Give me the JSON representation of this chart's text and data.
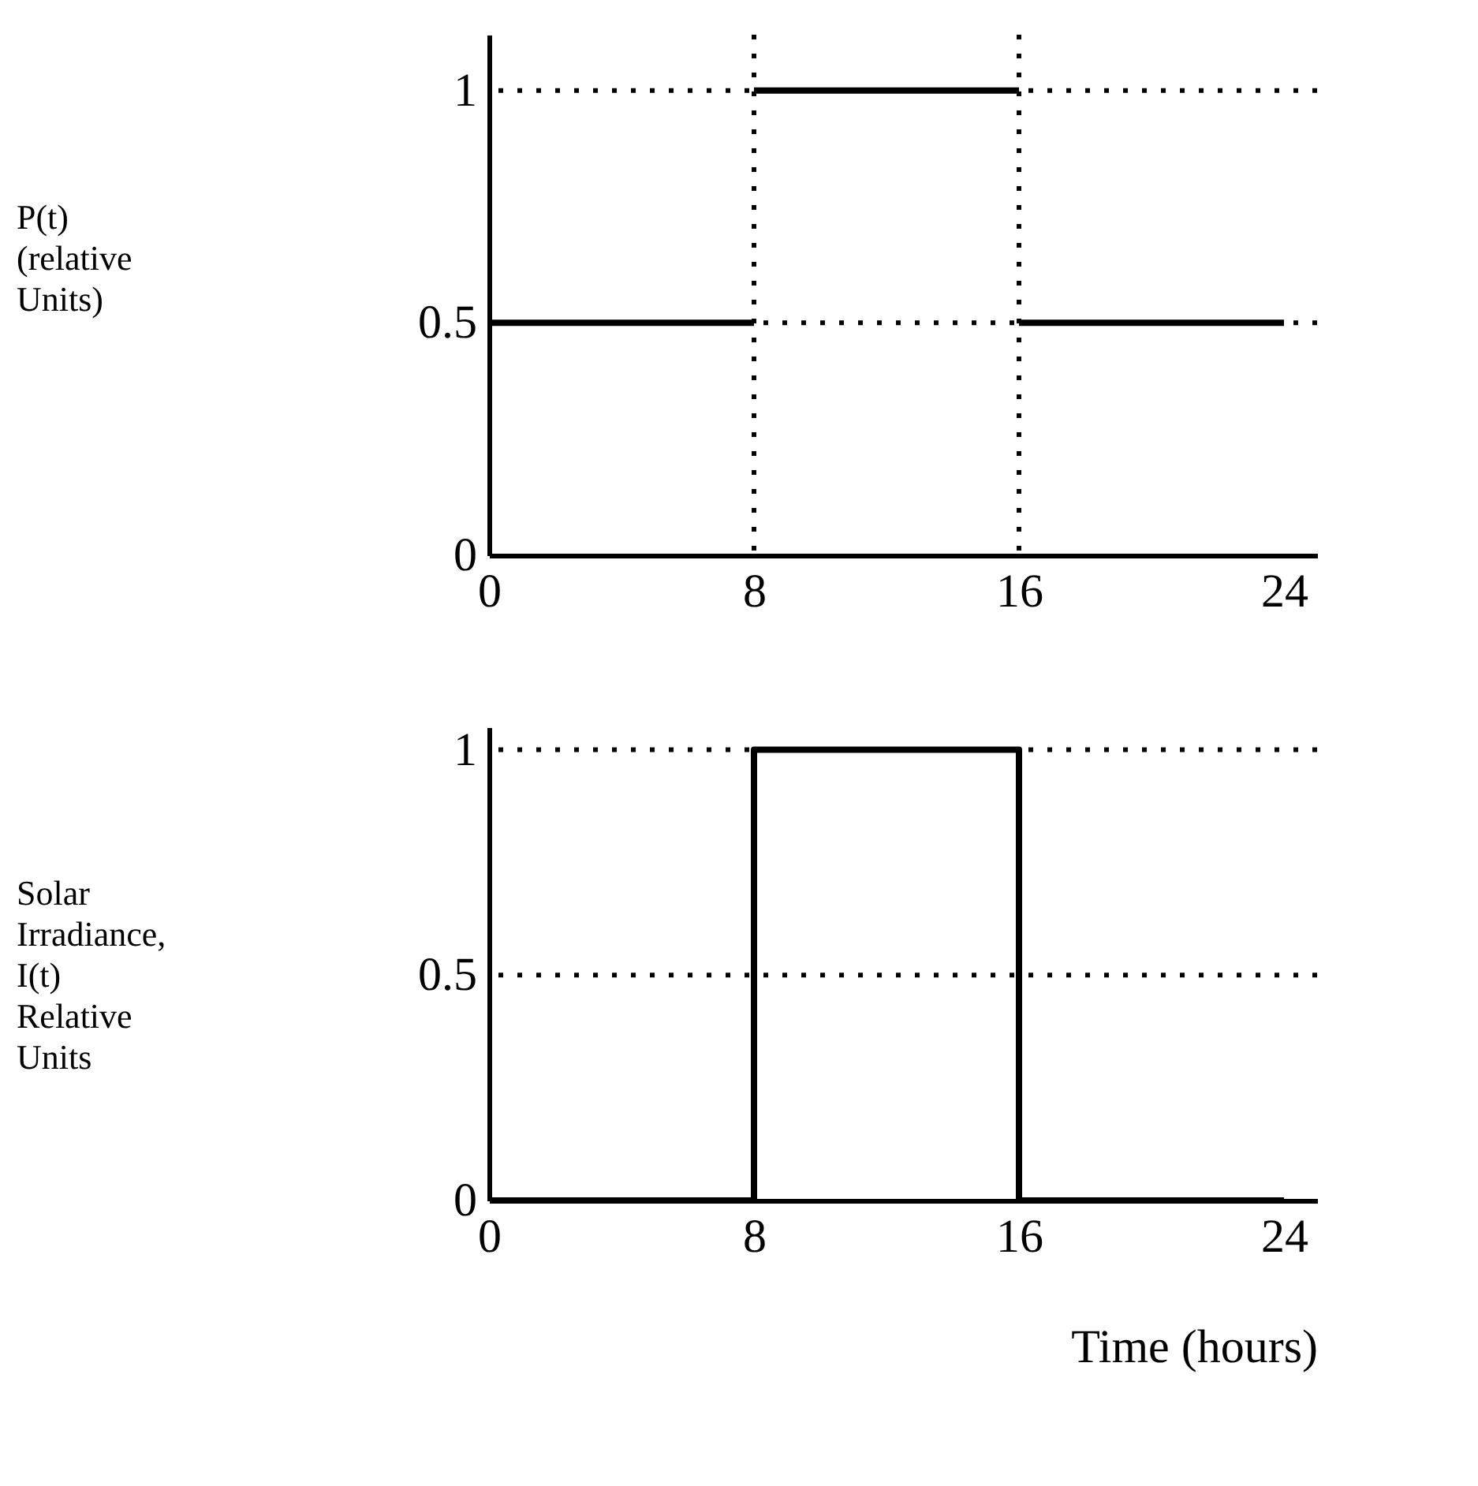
{
  "chart_data": [
    {
      "type": "line",
      "ylabel": "P(t)\n(relative\nUnits)",
      "xlim": [
        0,
        25
      ],
      "xticks": [
        0,
        8,
        16,
        24
      ],
      "ylim": [
        0,
        1.12
      ],
      "yticks": [
        0,
        0.5,
        1
      ],
      "grid": false,
      "line_style": "solid",
      "series": [
        {
          "color": "#000000",
          "x": [
            0,
            8
          ],
          "values": [
            0.5,
            0.5
          ]
        },
        {
          "color": "#000000",
          "x": [
            8,
            16
          ],
          "values": [
            1,
            1
          ]
        },
        {
          "color": "#000000",
          "x": [
            16,
            24
          ],
          "values": [
            0.5,
            0.5
          ]
        }
      ],
      "ref_lines": [
        {
          "axis": "y",
          "value": 1,
          "line_style": "dotted"
        },
        {
          "axis": "y",
          "value": 0.5,
          "line_style": "dotted"
        },
        {
          "axis": "x",
          "value": 8,
          "line_style": "dotted"
        },
        {
          "axis": "x",
          "value": 16,
          "line_style": "dotted"
        }
      ]
    },
    {
      "type": "step",
      "ylabel": "Solar\nIrradiance,\nI(t)\nRelative\nUnits",
      "xlabel": "Time (hours)",
      "x": [
        0,
        8,
        16,
        24
      ],
      "xlim": [
        0,
        25
      ],
      "xticks": [
        0,
        8,
        16,
        24
      ],
      "ylim": [
        0,
        1.05
      ],
      "yticks": [
        0,
        0.5,
        1
      ],
      "grid": false,
      "line_style": "solid",
      "series": [
        {
          "color": "#000000",
          "values": [
            0,
            1,
            0,
            0
          ]
        }
      ],
      "ref_lines": [
        {
          "axis": "y",
          "value": 1,
          "line_style": "dotted"
        },
        {
          "axis": "y",
          "value": 0.5,
          "line_style": "dotted"
        }
      ]
    }
  ]
}
